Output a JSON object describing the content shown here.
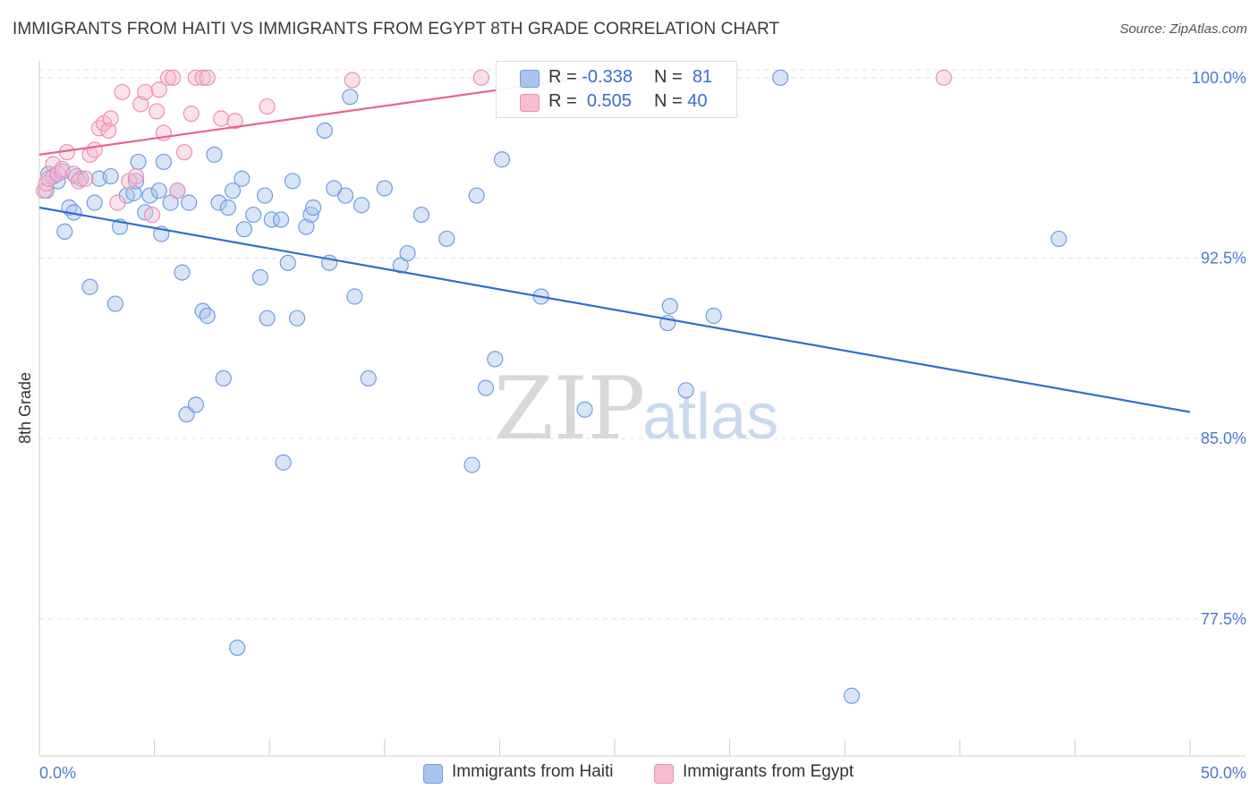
{
  "title": "IMMIGRANTS FROM HAITI VS IMMIGRANTS FROM EGYPT 8TH GRADE CORRELATION CHART",
  "source": "Source: ZipAtlas.com",
  "watermark": {
    "zip": "ZIP",
    "atlas": "atlas"
  },
  "legend": {
    "rows": [
      {
        "r_label": "R =",
        "r_value": "-0.338",
        "n_label": "N =",
        "n_value": "81",
        "color": "#a9c4ee",
        "border": "#6f9ee0"
      },
      {
        "r_label": "R =",
        "r_value": "0.505",
        "n_label": "N =",
        "n_value": "40",
        "color": "#f7bdd0",
        "border": "#ee8fb1"
      }
    ]
  },
  "bottom_legend": [
    {
      "label": "Immigrants from Haiti",
      "color": "#a9c4ee",
      "border": "#6f9ee0"
    },
    {
      "label": "Immigrants from Egypt",
      "color": "#f7bdd0",
      "border": "#ee8fb1"
    }
  ],
  "chart_data": {
    "type": "scatter",
    "xlabel": "",
    "ylabel": "8th Grade",
    "xlim": [
      0,
      50
    ],
    "ylim": [
      71.8,
      100.7
    ],
    "x_tick_labels": [
      {
        "value": 0,
        "label": "0.0%"
      },
      {
        "value": 50,
        "label": "50.0%"
      }
    ],
    "y_tick_labels": [
      {
        "value": 100,
        "label": "100.0%"
      },
      {
        "value": 92.5,
        "label": "92.5%"
      },
      {
        "value": 85,
        "label": "85.0%"
      },
      {
        "value": 77.5,
        "label": "77.5%"
      }
    ],
    "x_minor_ticks": [
      5,
      10,
      15,
      20,
      25,
      30,
      35,
      40,
      45,
      50
    ],
    "grid": true,
    "colors": {
      "haiti": "#6f9ee0",
      "haiti_fill": "#a9c4ee",
      "haiti_line": "#2f6fcf",
      "egypt": "#ee8fb1",
      "egypt_fill": "#f7bdd0",
      "egypt_line": "#e7648f"
    },
    "series": [
      {
        "name": "Immigrants from Haiti",
        "trend": {
          "x": [
            0,
            50
          ],
          "y": [
            94.6,
            86.1
          ]
        },
        "points": [
          [
            0.4,
            96.0
          ],
          [
            0.8,
            95.7
          ],
          [
            1.0,
            96.1
          ],
          [
            1.1,
            93.6
          ],
          [
            1.3,
            94.6
          ],
          [
            1.5,
            94.4
          ],
          [
            1.6,
            95.9
          ],
          [
            1.8,
            95.8
          ],
          [
            2.2,
            91.3
          ],
          [
            2.4,
            94.8
          ],
          [
            2.6,
            95.8
          ],
          [
            3.1,
            95.9
          ],
          [
            3.3,
            90.6
          ],
          [
            3.5,
            93.8
          ],
          [
            3.8,
            95.1
          ],
          [
            4.1,
            95.2
          ],
          [
            4.2,
            95.7
          ],
          [
            4.3,
            96.5
          ],
          [
            4.6,
            94.4
          ],
          [
            4.8,
            95.1
          ],
          [
            5.2,
            95.3
          ],
          [
            5.3,
            93.5
          ],
          [
            5.4,
            96.5
          ],
          [
            5.7,
            94.8
          ],
          [
            6.0,
            95.3
          ],
          [
            6.2,
            91.9
          ],
          [
            6.4,
            86.0
          ],
          [
            6.5,
            94.8
          ],
          [
            6.8,
            86.4
          ],
          [
            7.1,
            90.3
          ],
          [
            7.3,
            90.1
          ],
          [
            7.6,
            96.8
          ],
          [
            7.8,
            94.8
          ],
          [
            8.0,
            87.5
          ],
          [
            8.2,
            94.6
          ],
          [
            8.4,
            95.3
          ],
          [
            8.6,
            76.3
          ],
          [
            8.8,
            95.8
          ],
          [
            8.9,
            93.7
          ],
          [
            9.3,
            94.3
          ],
          [
            9.6,
            91.7
          ],
          [
            9.8,
            95.1
          ],
          [
            9.9,
            90.0
          ],
          [
            10.1,
            94.1
          ],
          [
            10.5,
            94.1
          ],
          [
            10.6,
            84.0
          ],
          [
            10.8,
            92.3
          ],
          [
            11.0,
            95.7
          ],
          [
            11.2,
            90.0
          ],
          [
            11.6,
            93.8
          ],
          [
            11.8,
            94.3
          ],
          [
            11.9,
            94.6
          ],
          [
            12.4,
            97.8
          ],
          [
            12.6,
            92.3
          ],
          [
            12.8,
            95.4
          ],
          [
            13.3,
            95.1
          ],
          [
            13.5,
            99.2
          ],
          [
            13.7,
            90.9
          ],
          [
            14.0,
            94.7
          ],
          [
            14.3,
            87.5
          ],
          [
            15.0,
            95.4
          ],
          [
            15.7,
            92.2
          ],
          [
            16.0,
            92.7
          ],
          [
            16.6,
            94.3
          ],
          [
            17.7,
            93.3
          ],
          [
            18.8,
            83.9
          ],
          [
            19.0,
            95.1
          ],
          [
            19.4,
            87.1
          ],
          [
            19.8,
            88.3
          ],
          [
            20.1,
            96.6
          ],
          [
            21.8,
            90.9
          ],
          [
            23.7,
            86.2
          ],
          [
            27.3,
            89.8
          ],
          [
            27.4,
            90.5
          ],
          [
            28.1,
            87.0
          ],
          [
            29.3,
            90.1
          ],
          [
            32.2,
            100.0
          ],
          [
            35.3,
            74.3
          ],
          [
            44.3,
            93.3
          ],
          [
            0.3,
            95.3
          ],
          [
            0.6,
            95.9
          ]
        ]
      },
      {
        "name": "Immigrants from Egypt",
        "trend": {
          "x": [
            0,
            23.7
          ],
          "y": [
            96.8,
            100.0
          ]
        },
        "points": [
          [
            0.2,
            95.3
          ],
          [
            0.3,
            95.6
          ],
          [
            0.4,
            95.8
          ],
          [
            0.6,
            96.4
          ],
          [
            0.8,
            96.0
          ],
          [
            1.0,
            96.2
          ],
          [
            1.2,
            96.9
          ],
          [
            1.5,
            96.0
          ],
          [
            1.7,
            95.7
          ],
          [
            2.0,
            95.8
          ],
          [
            2.2,
            96.8
          ],
          [
            2.4,
            97.0
          ],
          [
            2.6,
            97.9
          ],
          [
            2.8,
            98.1
          ],
          [
            3.0,
            97.8
          ],
          [
            3.1,
            98.3
          ],
          [
            3.4,
            94.8
          ],
          [
            3.6,
            99.4
          ],
          [
            3.9,
            95.7
          ],
          [
            4.2,
            95.9
          ],
          [
            4.4,
            98.9
          ],
          [
            4.6,
            99.4
          ],
          [
            4.9,
            94.3
          ],
          [
            5.1,
            98.6
          ],
          [
            5.2,
            99.5
          ],
          [
            5.4,
            97.7
          ],
          [
            5.6,
            100.0
          ],
          [
            5.8,
            100.0
          ],
          [
            6.0,
            95.3
          ],
          [
            6.3,
            96.9
          ],
          [
            6.6,
            98.5
          ],
          [
            6.8,
            100.0
          ],
          [
            7.1,
            100.0
          ],
          [
            7.3,
            100.0
          ],
          [
            7.9,
            98.3
          ],
          [
            8.5,
            98.2
          ],
          [
            9.9,
            98.8
          ],
          [
            13.6,
            99.9
          ],
          [
            19.2,
            100.0
          ],
          [
            39.3,
            100.0
          ]
        ]
      }
    ]
  }
}
